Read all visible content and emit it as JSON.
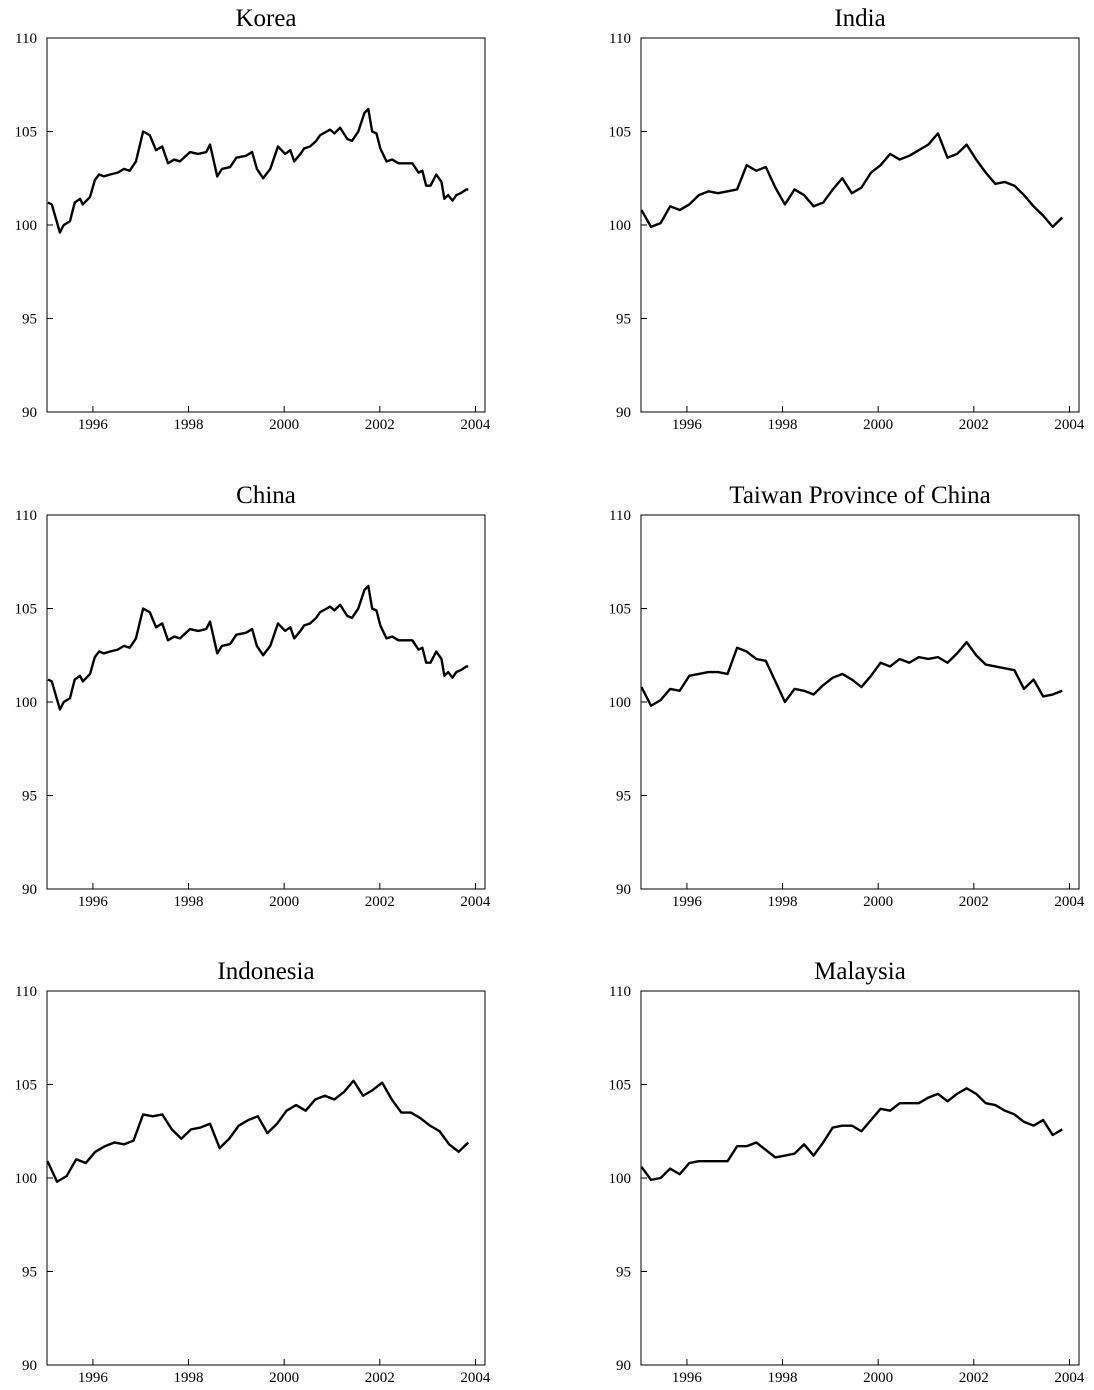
{
  "chart_data": [
    {
      "type": "line",
      "title": "Korea",
      "color": "#000000",
      "xlim": [
        1995.04,
        2004.2
      ],
      "ylim": [
        90,
        110
      ],
      "xticks": [
        1996,
        1998,
        2000,
        2002,
        2004
      ],
      "yticks": [
        90,
        95,
        100,
        105,
        110
      ],
      "x": [
        1995.06,
        1995.14,
        1995.31,
        1995.39,
        1995.52,
        1995.62,
        1995.73,
        1995.79,
        1995.94,
        1996.04,
        1996.13,
        1996.23,
        1996.36,
        1996.52,
        1996.65,
        1996.77,
        1996.9,
        1997.05,
        1997.19,
        1997.32,
        1997.45,
        1997.57,
        1997.7,
        1997.82,
        1998.03,
        1998.2,
        1998.37,
        1998.45,
        1998.6,
        1998.7,
        1998.87,
        1999.0,
        1999.2,
        1999.33,
        1999.43,
        1999.56,
        1999.71,
        1999.87,
        2000.02,
        2000.13,
        2000.21,
        2000.34,
        2000.42,
        2000.54,
        2000.67,
        2000.75,
        2000.96,
        2001.05,
        2001.17,
        2001.32,
        2001.42,
        2001.55,
        2001.68,
        2001.76,
        2001.84,
        2001.93,
        2002.01,
        2002.14,
        2002.26,
        2002.39,
        2002.51,
        2002.68,
        2002.81,
        2002.89,
        2002.97,
        2003.06,
        2003.18,
        2003.29,
        2003.35,
        2003.43,
        2003.52,
        2003.6,
        2003.69,
        2003.81,
        2003.85
      ],
      "values": [
        101.2,
        101.1,
        99.6,
        100.0,
        100.2,
        101.2,
        101.4,
        101.1,
        101.5,
        102.4,
        102.7,
        102.6,
        102.7,
        102.8,
        103.0,
        102.9,
        103.4,
        105.0,
        104.8,
        104.0,
        104.2,
        103.3,
        103.5,
        103.4,
        103.9,
        103.8,
        103.9,
        104.3,
        102.6,
        103.0,
        103.1,
        103.6,
        103.7,
        103.9,
        103.0,
        102.5,
        103.0,
        104.2,
        103.8,
        104.0,
        103.4,
        103.8,
        104.1,
        104.2,
        104.5,
        104.8,
        105.1,
        104.9,
        105.2,
        104.6,
        104.5,
        105.0,
        106.0,
        106.2,
        105.0,
        104.9,
        104.1,
        103.4,
        103.5,
        103.3,
        103.3,
        103.3,
        102.8,
        102.9,
        102.1,
        102.1,
        102.7,
        102.3,
        101.4,
        101.6,
        101.3,
        101.6,
        101.7,
        101.9,
        101.9
      ]
    },
    {
      "type": "line",
      "title": "India",
      "color": "#000000",
      "xlim": [
        1995.04,
        2004.2
      ],
      "ylim": [
        90,
        110
      ],
      "xticks": [
        1996,
        1998,
        2000,
        2002,
        2004
      ],
      "yticks": [
        90,
        95,
        100,
        105,
        110
      ],
      "x": [
        1995.05,
        1995.25,
        1995.45,
        1995.65,
        1995.85,
        1996.05,
        1996.25,
        1996.45,
        1996.65,
        1996.85,
        1997.05,
        1997.25,
        1997.45,
        1997.65,
        1997.85,
        1998.05,
        1998.25,
        1998.45,
        1998.65,
        1998.85,
        1999.05,
        1999.25,
        1999.45,
        1999.65,
        1999.85,
        2000.05,
        2000.25,
        2000.45,
        2000.65,
        2000.85,
        2001.05,
        2001.25,
        2001.45,
        2001.65,
        2001.85,
        2002.05,
        2002.25,
        2002.45,
        2002.65,
        2002.85,
        2003.05,
        2003.25,
        2003.45,
        2003.65,
        2003.85
      ],
      "values": [
        100.8,
        99.9,
        100.1,
        101.0,
        100.8,
        101.1,
        101.6,
        101.8,
        101.7,
        101.8,
        101.9,
        103.2,
        102.9,
        103.1,
        102.0,
        101.1,
        101.9,
        101.6,
        101.0,
        101.2,
        101.9,
        102.5,
        101.7,
        102.0,
        102.8,
        103.2,
        103.8,
        103.5,
        103.7,
        104.0,
        104.3,
        104.9,
        103.6,
        103.8,
        104.3,
        103.5,
        102.8,
        102.2,
        102.3,
        102.1,
        101.6,
        101.0,
        100.5,
        99.9,
        100.4
      ]
    },
    {
      "type": "line",
      "title": "China",
      "color": "#000000",
      "xlim": [
        1995.04,
        2004.2
      ],
      "ylim": [
        90,
        110
      ],
      "xticks": [
        1996,
        1998,
        2000,
        2002,
        2004
      ],
      "yticks": [
        90,
        95,
        100,
        105,
        110
      ],
      "x": [
        1995.06,
        1995.14,
        1995.31,
        1995.39,
        1995.52,
        1995.62,
        1995.73,
        1995.79,
        1995.94,
        1996.04,
        1996.13,
        1996.23,
        1996.36,
        1996.52,
        1996.65,
        1996.77,
        1996.9,
        1997.05,
        1997.19,
        1997.32,
        1997.45,
        1997.57,
        1997.7,
        1997.82,
        1998.03,
        1998.2,
        1998.37,
        1998.45,
        1998.6,
        1998.7,
        1998.87,
        1999.0,
        1999.2,
        1999.33,
        1999.43,
        1999.56,
        1999.71,
        1999.87,
        2000.02,
        2000.13,
        2000.21,
        2000.34,
        2000.42,
        2000.54,
        2000.67,
        2000.75,
        2000.96,
        2001.05,
        2001.17,
        2001.32,
        2001.42,
        2001.55,
        2001.68,
        2001.76,
        2001.84,
        2001.93,
        2002.01,
        2002.14,
        2002.26,
        2002.39,
        2002.51,
        2002.68,
        2002.81,
        2002.89,
        2002.97,
        2003.06,
        2003.18,
        2003.29,
        2003.35,
        2003.43,
        2003.52,
        2003.6,
        2003.69,
        2003.81,
        2003.85
      ],
      "values": [
        101.2,
        101.1,
        99.6,
        100.0,
        100.2,
        101.2,
        101.4,
        101.1,
        101.5,
        102.4,
        102.7,
        102.6,
        102.7,
        102.8,
        103.0,
        102.9,
        103.4,
        105.0,
        104.8,
        104.0,
        104.2,
        103.3,
        103.5,
        103.4,
        103.9,
        103.8,
        103.9,
        104.3,
        102.6,
        103.0,
        103.1,
        103.6,
        103.7,
        103.9,
        103.0,
        102.5,
        103.0,
        104.2,
        103.8,
        104.0,
        103.4,
        103.8,
        104.1,
        104.2,
        104.5,
        104.8,
        105.1,
        104.9,
        105.2,
        104.6,
        104.5,
        105.0,
        106.0,
        106.2,
        105.0,
        104.9,
        104.1,
        103.4,
        103.5,
        103.3,
        103.3,
        103.3,
        102.8,
        102.9,
        102.1,
        102.1,
        102.7,
        102.3,
        101.4,
        101.6,
        101.3,
        101.6,
        101.7,
        101.9,
        101.9
      ]
    },
    {
      "type": "line",
      "title": "Taiwan Province of China",
      "color": "#000000",
      "xlim": [
        1995.04,
        2004.2
      ],
      "ylim": [
        90,
        110
      ],
      "xticks": [
        1996,
        1998,
        2000,
        2002,
        2004
      ],
      "yticks": [
        90,
        95,
        100,
        105,
        110
      ],
      "x": [
        1995.05,
        1995.25,
        1995.45,
        1995.65,
        1995.85,
        1996.05,
        1996.25,
        1996.45,
        1996.65,
        1996.85,
        1997.05,
        1997.25,
        1997.45,
        1997.65,
        1997.85,
        1998.05,
        1998.25,
        1998.45,
        1998.65,
        1998.85,
        1999.05,
        1999.25,
        1999.45,
        1999.65,
        1999.85,
        2000.05,
        2000.25,
        2000.45,
        2000.65,
        2000.85,
        2001.05,
        2001.25,
        2001.45,
        2001.65,
        2001.85,
        2002.05,
        2002.25,
        2002.45,
        2002.65,
        2002.85,
        2003.05,
        2003.25,
        2003.45,
        2003.65,
        2003.85
      ],
      "values": [
        100.8,
        99.8,
        100.1,
        100.7,
        100.6,
        101.4,
        101.5,
        101.6,
        101.6,
        101.5,
        102.9,
        102.7,
        102.3,
        102.2,
        101.1,
        100.0,
        100.7,
        100.6,
        100.4,
        100.9,
        101.3,
        101.5,
        101.2,
        100.8,
        101.4,
        102.1,
        101.9,
        102.3,
        102.1,
        102.4,
        102.3,
        102.4,
        102.1,
        102.6,
        103.2,
        102.5,
        102.0,
        101.9,
        101.8,
        101.7,
        100.7,
        101.2,
        100.3,
        100.4,
        100.6
      ]
    },
    {
      "type": "line",
      "title": "Indonesia",
      "color": "#000000",
      "xlim": [
        1995.04,
        2004.2
      ],
      "ylim": [
        90,
        110
      ],
      "xticks": [
        1996,
        1998,
        2000,
        2002,
        2004
      ],
      "yticks": [
        90,
        95,
        100,
        105,
        110
      ],
      "x": [
        1995.05,
        1995.25,
        1995.45,
        1995.65,
        1995.85,
        1996.05,
        1996.25,
        1996.45,
        1996.65,
        1996.85,
        1997.05,
        1997.25,
        1997.45,
        1997.65,
        1997.85,
        1998.05,
        1998.25,
        1998.45,
        1998.65,
        1998.85,
        1999.05,
        1999.25,
        1999.45,
        1999.65,
        1999.85,
        2000.05,
        2000.25,
        2000.45,
        2000.65,
        2000.85,
        2001.05,
        2001.25,
        2001.45,
        2001.65,
        2001.85,
        2002.05,
        2002.25,
        2002.45,
        2002.65,
        2002.85,
        2003.05,
        2003.25,
        2003.45,
        2003.65,
        2003.85
      ],
      "values": [
        100.9,
        99.8,
        100.1,
        101.0,
        100.8,
        101.4,
        101.7,
        101.9,
        101.8,
        102.0,
        103.4,
        103.3,
        103.4,
        102.6,
        102.1,
        102.6,
        102.7,
        102.9,
        101.6,
        102.1,
        102.8,
        103.1,
        103.3,
        102.4,
        102.9,
        103.6,
        103.9,
        103.6,
        104.2,
        104.4,
        104.2,
        104.6,
        105.2,
        104.4,
        104.7,
        105.1,
        104.2,
        103.5,
        103.5,
        103.2,
        102.8,
        102.5,
        101.8,
        101.4,
        101.9
      ]
    },
    {
      "type": "line",
      "title": "Malaysia",
      "color": "#000000",
      "xlim": [
        1995.04,
        2004.2
      ],
      "ylim": [
        90,
        110
      ],
      "xticks": [
        1996,
        1998,
        2000,
        2002,
        2004
      ],
      "yticks": [
        90,
        95,
        100,
        105,
        110
      ],
      "x": [
        1995.05,
        1995.25,
        1995.45,
        1995.65,
        1995.85,
        1996.05,
        1996.25,
        1996.45,
        1996.65,
        1996.85,
        1997.05,
        1997.25,
        1997.45,
        1997.65,
        1997.85,
        1998.05,
        1998.25,
        1998.45,
        1998.65,
        1998.85,
        1999.05,
        1999.25,
        1999.45,
        1999.65,
        1999.85,
        2000.05,
        2000.25,
        2000.45,
        2000.65,
        2000.85,
        2001.05,
        2001.25,
        2001.45,
        2001.65,
        2001.85,
        2002.05,
        2002.25,
        2002.45,
        2002.65,
        2002.85,
        2003.05,
        2003.25,
        2003.45,
        2003.65,
        2003.85
      ],
      "values": [
        100.6,
        99.9,
        100.0,
        100.5,
        100.2,
        100.8,
        100.9,
        100.9,
        100.9,
        100.9,
        101.7,
        101.7,
        101.9,
        101.5,
        101.1,
        101.2,
        101.3,
        101.8,
        101.2,
        101.9,
        102.7,
        102.8,
        102.8,
        102.5,
        103.1,
        103.7,
        103.6,
        104.0,
        104.0,
        104.0,
        104.3,
        104.5,
        104.1,
        104.5,
        104.8,
        104.5,
        104.0,
        103.9,
        103.6,
        103.4,
        103.0,
        102.8,
        103.1,
        102.3,
        102.6
      ]
    }
  ]
}
